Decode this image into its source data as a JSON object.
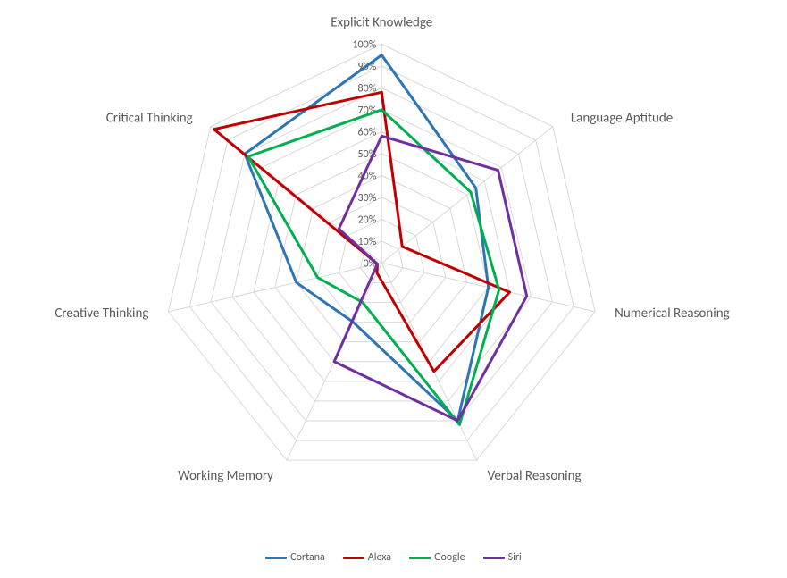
{
  "radar_chart": {
    "type": "radar",
    "background_color": "#ffffff",
    "grid_color": "#d9d9d9",
    "axis_line_color": "#d9d9d9",
    "label_color": "#595959",
    "label_fontsize": 15,
    "tick_fontsize": 12,
    "line_width": 3,
    "rmax": 100,
    "rtick_step": 10,
    "tick_suffix": "%",
    "categories": [
      "Explicit Knowledge",
      "Language Aptitude",
      "Numerical Reasoning",
      "Verbal Reasoning",
      "Working Memory",
      "Creative Thinking",
      "Critical Thinking"
    ],
    "series": [
      {
        "name": "Cortana",
        "color": "#2e75b6",
        "values": [
          95,
          55,
          50,
          80,
          30,
          40,
          80
        ]
      },
      {
        "name": "Alexa",
        "color": "#c00000",
        "values": [
          78,
          12,
          60,
          55,
          5,
          2,
          98
        ]
      },
      {
        "name": "Google",
        "color": "#00b050",
        "values": [
          70,
          52,
          55,
          82,
          20,
          30,
          78
        ]
      },
      {
        "name": "Siri",
        "color": "#7030a0",
        "values": [
          58,
          68,
          68,
          80,
          50,
          2,
          25
        ]
      }
    ],
    "legend_position": "bottom"
  }
}
